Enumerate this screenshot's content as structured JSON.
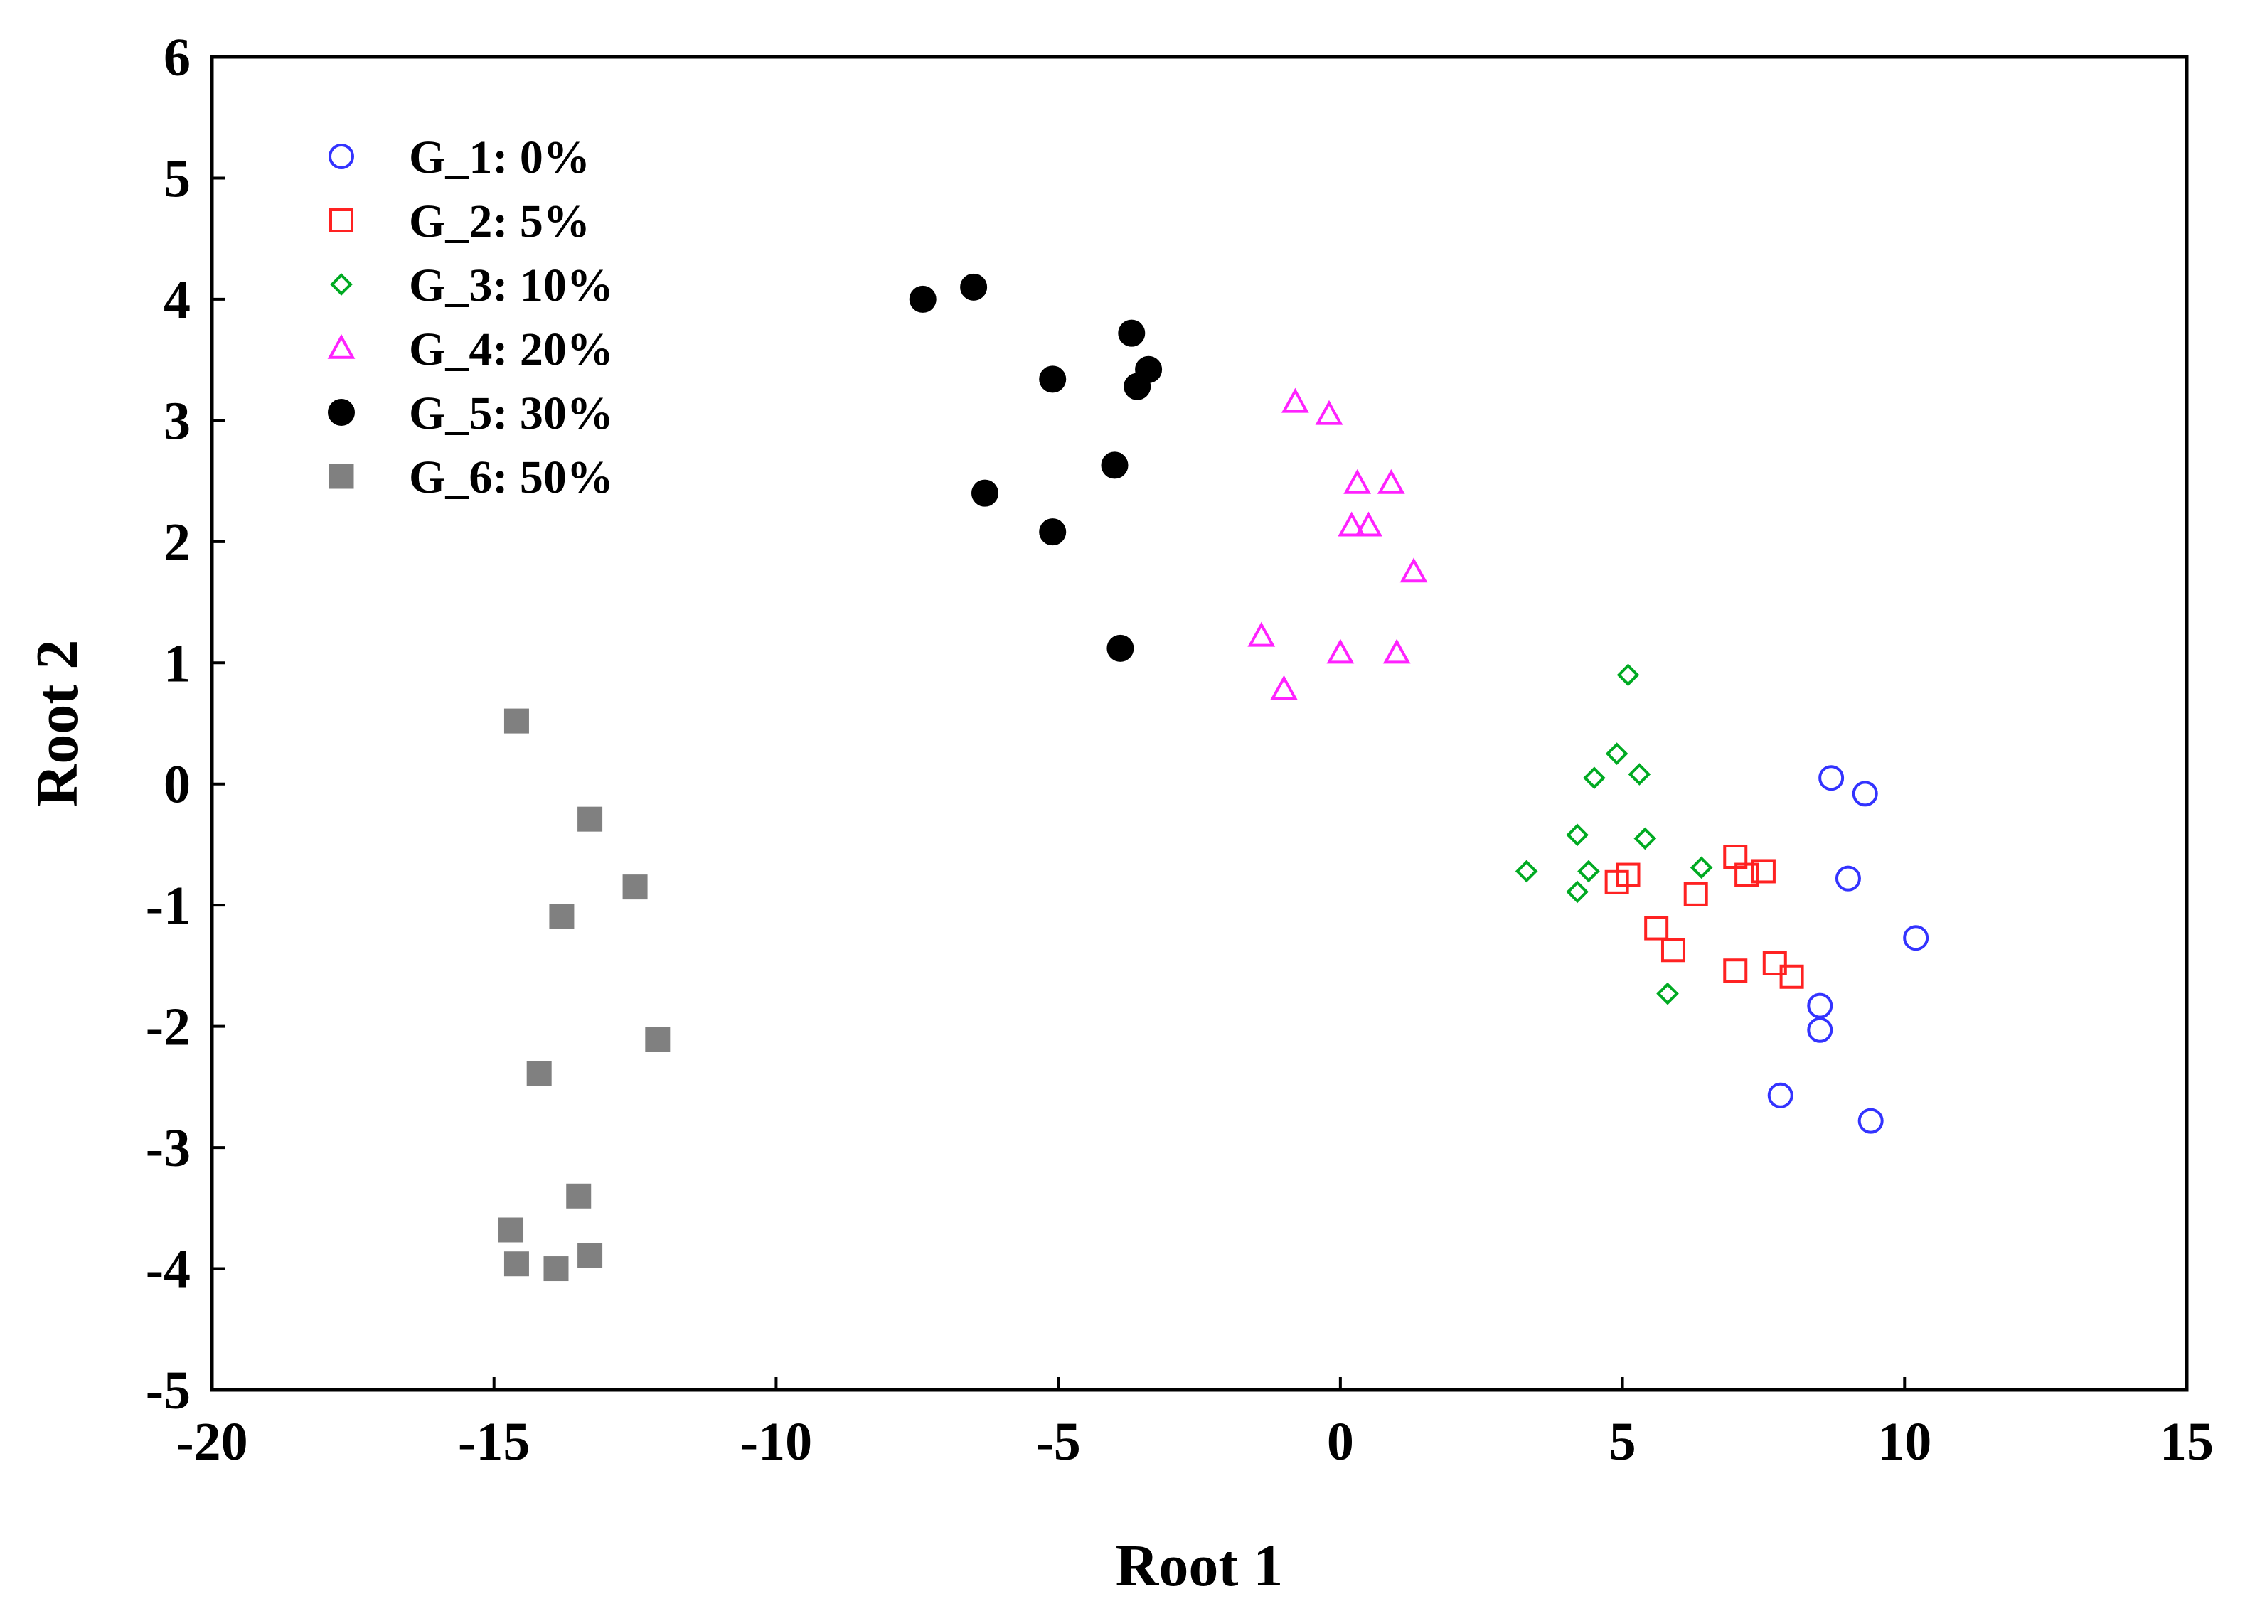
{
  "chart_data": {
    "type": "scatter",
    "title": "",
    "xlabel": "Root 1",
    "ylabel": "Root 2",
    "xlim": [
      -20,
      15
    ],
    "ylim": [
      -5,
      6
    ],
    "xticks": [
      -20,
      -15,
      -10,
      -5,
      0,
      5,
      10,
      15
    ],
    "yticks": [
      -5,
      -4,
      -3,
      -2,
      -1,
      0,
      1,
      2,
      3,
      4,
      5,
      6
    ],
    "grid": false,
    "legend_position": "top-left",
    "series": [
      {
        "name": "G_1: 0%",
        "marker": "circle-open",
        "color": "#3333ff",
        "points": [
          [
            8.7,
            0.05
          ],
          [
            9.3,
            -0.08
          ],
          [
            9.0,
            -0.78
          ],
          [
            10.2,
            -1.27
          ],
          [
            8.5,
            -1.83
          ],
          [
            8.5,
            -2.03
          ],
          [
            7.8,
            -2.57
          ],
          [
            9.4,
            -2.78
          ]
        ]
      },
      {
        "name": "G_2: 5%",
        "marker": "square-open",
        "color": "#ff2222",
        "points": [
          [
            4.9,
            -0.81
          ],
          [
            5.1,
            -0.75
          ],
          [
            7.0,
            -0.6
          ],
          [
            7.2,
            -0.75
          ],
          [
            7.5,
            -0.72
          ],
          [
            6.3,
            -0.91
          ],
          [
            5.6,
            -1.19
          ],
          [
            5.9,
            -1.37
          ],
          [
            7.0,
            -1.54
          ],
          [
            7.7,
            -1.48
          ],
          [
            8.0,
            -1.59
          ]
        ]
      },
      {
        "name": "G_3: 10%",
        "marker": "diamond-open",
        "color": "#00aa22",
        "points": [
          [
            5.1,
            0.9
          ],
          [
            4.9,
            0.25
          ],
          [
            4.5,
            0.05
          ],
          [
            5.3,
            0.08
          ],
          [
            4.2,
            -0.42
          ],
          [
            5.4,
            -0.45
          ],
          [
            3.3,
            -0.72
          ],
          [
            4.4,
            -0.72
          ],
          [
            6.4,
            -0.69
          ],
          [
            4.2,
            -0.89
          ],
          [
            5.8,
            -1.73
          ]
        ]
      },
      {
        "name": "G_4: 20%",
        "marker": "triangle-open",
        "color": "#ff22ff",
        "points": [
          [
            -0.8,
            3.15
          ],
          [
            -0.2,
            3.05
          ],
          [
            0.3,
            2.48
          ],
          [
            0.9,
            2.48
          ],
          [
            0.2,
            2.13
          ],
          [
            0.5,
            2.13
          ],
          [
            1.3,
            1.75
          ],
          [
            -1.4,
            1.22
          ],
          [
            0.0,
            1.08
          ],
          [
            1.0,
            1.08
          ],
          [
            -1.0,
            0.78
          ]
        ]
      },
      {
        "name": "G_5: 30%",
        "marker": "circle-filled",
        "color": "#000000",
        "points": [
          [
            -7.4,
            4.0
          ],
          [
            -6.5,
            4.1
          ],
          [
            -3.7,
            3.72
          ],
          [
            -5.1,
            3.34
          ],
          [
            -3.4,
            3.42
          ],
          [
            -3.6,
            3.28
          ],
          [
            -4.0,
            2.63
          ],
          [
            -6.3,
            2.4
          ],
          [
            -5.1,
            2.08
          ],
          [
            -3.9,
            1.12
          ]
        ]
      },
      {
        "name": "G_6: 50%",
        "marker": "square-filled",
        "color": "#808080",
        "points": [
          [
            -14.6,
            0.52
          ],
          [
            -13.3,
            -0.29
          ],
          [
            -12.5,
            -0.85
          ],
          [
            -13.8,
            -1.09
          ],
          [
            -12.1,
            -2.11
          ],
          [
            -14.2,
            -2.39
          ],
          [
            -13.5,
            -3.4
          ],
          [
            -14.7,
            -3.68
          ],
          [
            -13.3,
            -3.89
          ],
          [
            -14.6,
            -3.96
          ],
          [
            -13.9,
            -4.0
          ]
        ]
      }
    ]
  }
}
